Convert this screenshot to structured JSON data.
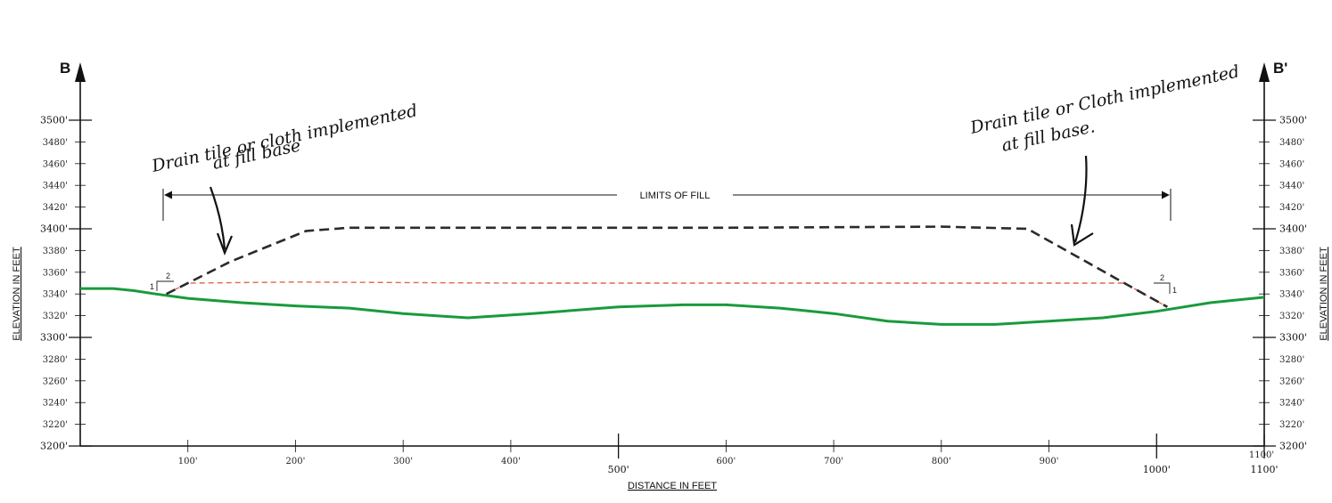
{
  "section": {
    "left_label": "B",
    "right_label": "B'"
  },
  "axes": {
    "ylabel": "ELEVATION IN FEET",
    "xlabel": "DISTANCE IN FEET",
    "y_ticks_major": [
      "3500'",
      "3400'",
      "3300'",
      "3200'"
    ],
    "y_ticks_minor_left": [
      "3480'",
      "3460'",
      "3440'",
      "3420'",
      "3380'",
      "3360'",
      "3340'",
      "3320'",
      "3280'",
      "3260'",
      "3240'",
      "3220'"
    ],
    "y_ticks_minor_right": [
      "3480'",
      "3460'",
      "3440'",
      "3420'",
      "3380'",
      "3360'",
      "3340'",
      "3320'",
      "3280'",
      "3260'",
      "3240'",
      "3220'"
    ],
    "x_ticks_minor": [
      "100'",
      "200'",
      "300'",
      "400'",
      "600'",
      "700'",
      "800'",
      "900'",
      "1100'"
    ],
    "x_ticks_major": [
      "500'",
      "1000'",
      "1100'"
    ]
  },
  "limits_label": "LIMITS OF FILL",
  "slope_labels": {
    "left_run": "2",
    "left_rise": "1",
    "right_run": "2",
    "right_rise": "1"
  },
  "annotations": {
    "left_line1": "Drain tile or cloth implemented",
    "left_line2": "at fill base",
    "right_line1": "Drain tile or Cloth implemented",
    "right_line2": "at fill base."
  },
  "colors": {
    "ground": "#1a9a3c",
    "fill_base": "#e0674f",
    "fill_top": "#2b2b2b",
    "ink": "#111111"
  },
  "chart_data": {
    "type": "line",
    "xlabel": "DISTANCE IN FEET",
    "ylabel": "ELEVATION IN FEET",
    "xlim": [
      0,
      1100
    ],
    "ylim": [
      3200,
      3510
    ],
    "limits_of_fill": [
      80,
      1015
    ],
    "series": [
      {
        "style": "solid",
        "x": [
          0,
          30,
          50,
          70,
          100,
          150,
          200,
          250,
          300,
          360,
          420,
          500,
          560,
          600,
          650,
          700,
          750,
          800,
          850,
          900,
          950,
          1000,
          1050,
          1100
        ],
        "y": [
          3345,
          3345,
          3343,
          3340,
          3336,
          3332,
          3329,
          3327,
          3322,
          3318,
          3322,
          3328,
          3330,
          3330,
          3327,
          3322,
          3315,
          3312,
          3312,
          3315,
          3318,
          3324,
          3332,
          3337
        ]
      },
      {
        "style": "dashed",
        "x": [
          80,
          100,
          200,
          400,
          600,
          800,
          970,
          1010
        ],
        "y": [
          3340,
          3350,
          3351,
          3350,
          3350,
          3350,
          3350,
          3328
        ]
      },
      {
        "style": "dashed",
        "x": [
          80,
          140,
          210,
          250,
          400,
          600,
          800,
          880,
          970,
          1010
        ],
        "y": [
          3340,
          3370,
          3398,
          3401,
          3401,
          3401,
          3402,
          3400,
          3350,
          3328
        ]
      }
    ]
  }
}
